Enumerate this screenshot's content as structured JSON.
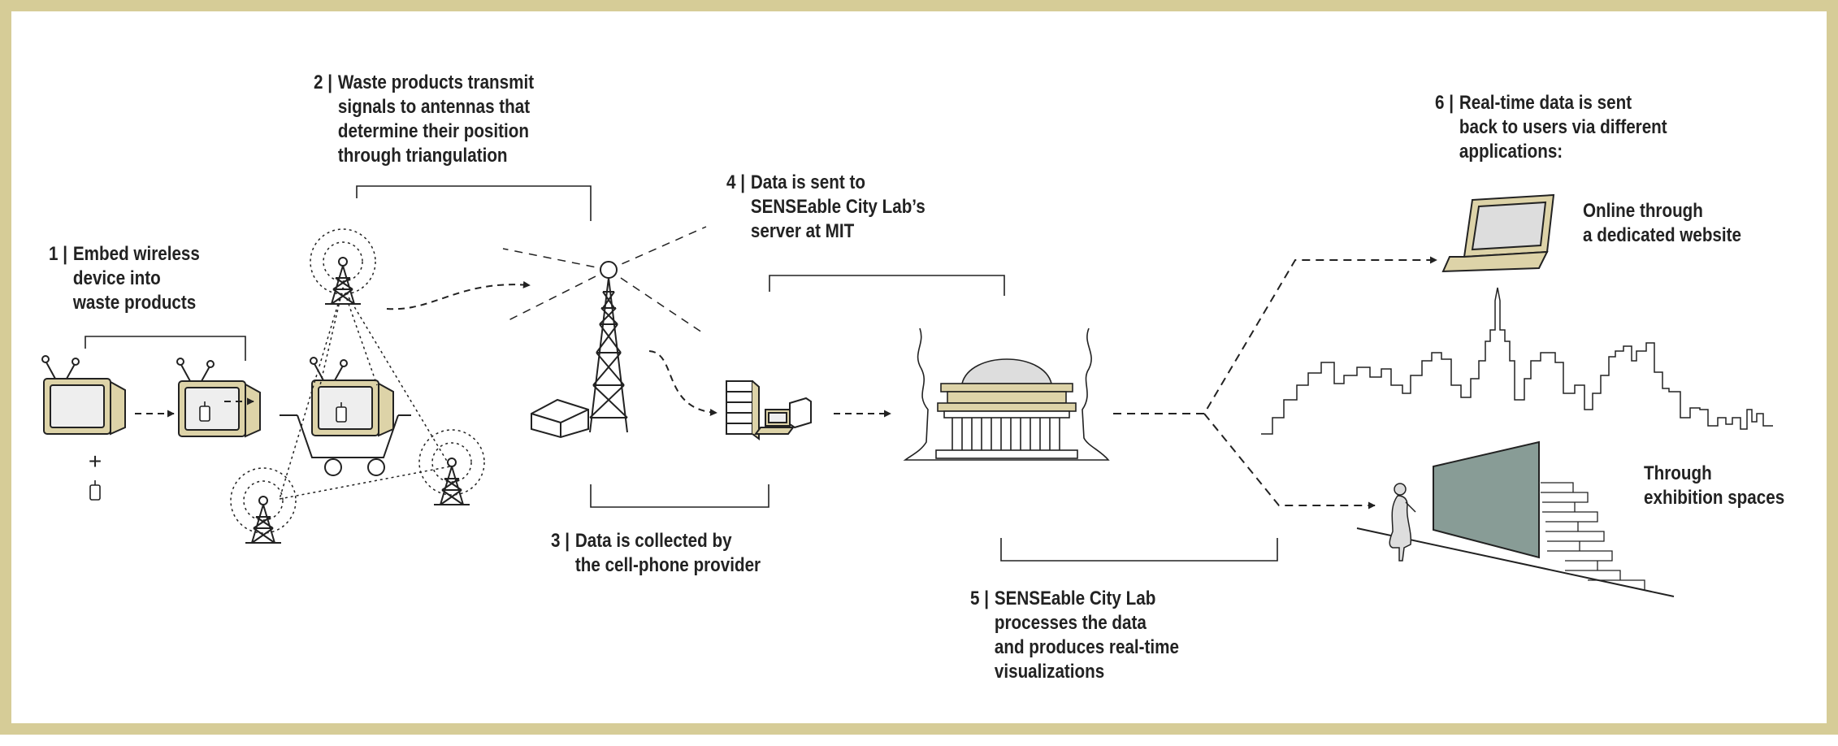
{
  "steps": [
    {
      "num": "1 |",
      "lines": [
        "Embed wireless",
        "device into",
        "waste products"
      ]
    },
    {
      "num": "2 |",
      "lines": [
        "Waste products transmit",
        "signals to antennas that",
        "determine their position",
        "through triangulation"
      ]
    },
    {
      "num": "3 |",
      "lines": [
        "Data is collected by",
        "the cell-phone provider"
      ]
    },
    {
      "num": "4 |",
      "lines": [
        "Data is sent to",
        "SENSEable City Lab’s",
        "server at MIT"
      ]
    },
    {
      "num": "5 |",
      "lines": [
        "SENSEable City Lab",
        "processes the data",
        "and produces real-time",
        "visualizations"
      ]
    },
    {
      "num": "6 |",
      "lines": [
        "Real-time data is sent",
        "back to users via different",
        "applications:"
      ]
    }
  ],
  "applications": [
    {
      "lines": [
        "Online through",
        "a dedicated website"
      ]
    },
    {
      "lines": [
        "Through",
        "exhibition spaces"
      ]
    }
  ],
  "plus_sign": "+",
  "colors": {
    "frame": "#d6cc97",
    "device_body": "#ddd3a8",
    "device_screen": "#eeeeee",
    "exhibition_wall": "#889c96",
    "ink": "#222222"
  },
  "icons": [
    "tv-icon",
    "wireless-tag-icon",
    "antenna-icon",
    "cart-icon",
    "cell-tower-icon",
    "house-icon",
    "server-icon",
    "laptop-icon",
    "mit-dome-icon",
    "skyline-icon",
    "person-icon",
    "brick-wall-icon"
  ]
}
